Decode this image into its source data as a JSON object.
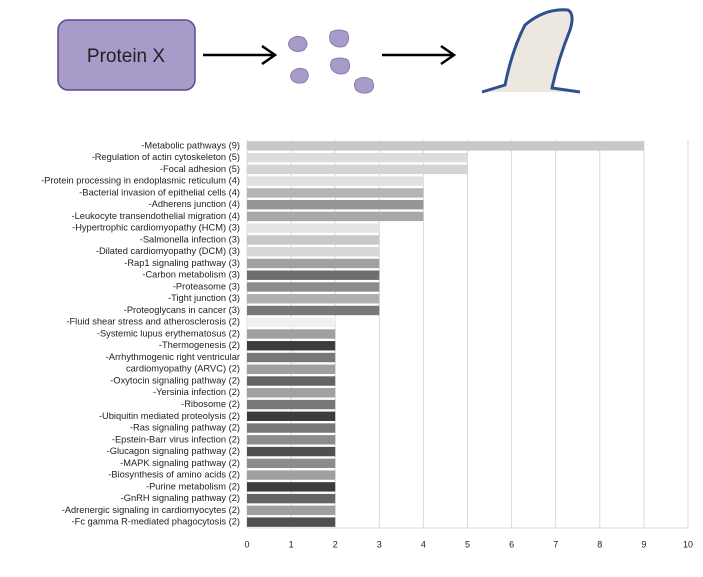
{
  "diagram": {
    "label": "Protein X"
  },
  "chart_data": {
    "type": "barh",
    "categories": [
      "-Metabolic pathways (9)",
      "-Regulation of actin cytoskeleton (5)",
      "-Focal adhesion (5)",
      "-Protein processing in endoplasmic reticulum (4)",
      "-Bacterial invasion of epithelial cells (4)",
      "-Adherens junction (4)",
      "-Leukocyte transendothelial migration (4)",
      "-Hypertrophic cardiomyopathy (HCM) (3)",
      "-Salmonella infection (3)",
      "-Dilated cardiomyopathy (DCM) (3)",
      "-Rap1 signaling pathway (3)",
      "-Carbon metabolism (3)",
      "-Proteasome (3)",
      "-Tight junction (3)",
      "-Proteoglycans in cancer (3)",
      "-Fluid shear stress and atherosclerosis (2)",
      "-Systemic lupus erythematosus (2)",
      "-Thermogenesis (2)",
      "-Arrhythmogenic right ventricular",
      "cardiomyopathy (ARVC) (2)",
      "-Oxytocin signaling pathway (2)",
      "-Yersinia infection (2)",
      "-Ribosome (2)",
      "-Ubiquitin mediated proteolysis (2)",
      "-Ras signaling pathway (2)",
      "-Epstein-Barr virus infection (2)",
      "-Glucagon signaling pathway (2)",
      "-MAPK signaling pathway (2)",
      "-Biosynthesis of amino acids (2)",
      "-Purine metabolism (2)",
      "-GnRH signaling pathway (2)",
      "-Adrenergic signaling in cardiomyocytes (2)",
      "-Fc gamma R-mediated phagocytosis (2)"
    ],
    "values": [
      9,
      5,
      5,
      4,
      4,
      4,
      4,
      3,
      3,
      3,
      3,
      3,
      3,
      3,
      3,
      2,
      2,
      2,
      2,
      2,
      2,
      2,
      2,
      2,
      2,
      2,
      2,
      2,
      2,
      2,
      2,
      2,
      2
    ],
    "colors": [
      "#c8c8c8",
      "#dcdcdc",
      "#d4d4d4",
      "#e0e0e0",
      "#b4b4b4",
      "#969696",
      "#a8a8a8",
      "#e4e4e4",
      "#c8c8c8",
      "#d8d8d8",
      "#a0a0a0",
      "#6e6e6e",
      "#8c8c8c",
      "#b0b0b0",
      "#787878",
      "#f0f0f0",
      "#a0a0a0",
      "#3c3c3c",
      "#787878",
      "#a0a0a0",
      "#646464",
      "#a0a0a0",
      "#787878",
      "#3c3c3c",
      "#787878",
      "#8c8c8c",
      "#505050",
      "#8c8c8c",
      "#a0a0a0",
      "#3c3c3c",
      "#646464",
      "#a0a0a0",
      "#505050"
    ],
    "xlim": [
      0,
      10
    ],
    "xticks": [
      0,
      1,
      2,
      3,
      4,
      5,
      6,
      7,
      8,
      9,
      10
    ],
    "grid": true
  }
}
